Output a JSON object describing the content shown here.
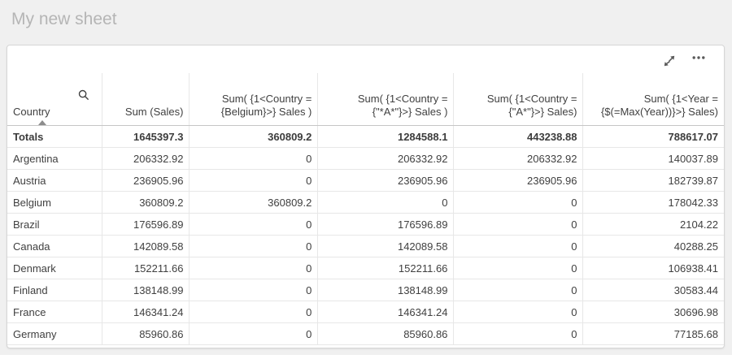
{
  "sheet": {
    "title": "My new sheet"
  },
  "toolbar": {
    "icons": [
      {
        "id": "fullscreen-icon",
        "meaning": "expand to full screen"
      },
      {
        "id": "more-menu-icon",
        "meaning": "more options menu"
      }
    ]
  },
  "table": {
    "columns": [
      {
        "id": "country",
        "label": "Country",
        "type": "dimension",
        "sorted": "ascending",
        "has_search_icon": true
      },
      {
        "id": "sum-sales",
        "label": "Sum (Sales)",
        "type": "measure"
      },
      {
        "id": "sum-belgium-sales",
        "label": "Sum( {1<Country = {Belgium}>} Sales )",
        "type": "measure"
      },
      {
        "id": "sum-star-a-star-sales",
        "label": "Sum( {1<Country = {\"*A*\"}>} Sales )",
        "type": "measure"
      },
      {
        "id": "sum-a-star-sales",
        "label": "Sum( {1<Country = {\"A*\"}>} Sales)",
        "type": "measure"
      },
      {
        "id": "sum-max-year-sales",
        "label": "Sum( {1<Year = {$(=Max(Year))}>} Sales)",
        "type": "measure"
      }
    ],
    "totals": {
      "label": "Totals",
      "values": [
        "1645397.3",
        "360809.2",
        "1284588.1",
        "443238.88",
        "788617.07"
      ]
    },
    "rows": [
      {
        "country": "Argentina",
        "values": [
          "206332.92",
          "0",
          "206332.92",
          "206332.92",
          "140037.89"
        ]
      },
      {
        "country": "Austria",
        "values": [
          "236905.96",
          "0",
          "236905.96",
          "236905.96",
          "182739.87"
        ]
      },
      {
        "country": "Belgium",
        "values": [
          "360809.2",
          "360809.2",
          "0",
          "0",
          "178042.33"
        ]
      },
      {
        "country": "Brazil",
        "values": [
          "176596.89",
          "0",
          "176596.89",
          "0",
          "2104.22"
        ]
      },
      {
        "country": "Canada",
        "values": [
          "142089.58",
          "0",
          "142089.58",
          "0",
          "40288.25"
        ]
      },
      {
        "country": "Denmark",
        "values": [
          "152211.66",
          "0",
          "152211.66",
          "0",
          "106938.41"
        ]
      },
      {
        "country": "Finland",
        "values": [
          "138148.99",
          "0",
          "138148.99",
          "0",
          "30583.44"
        ]
      },
      {
        "country": "France",
        "values": [
          "146341.24",
          "0",
          "146341.24",
          "0",
          "30696.98"
        ]
      },
      {
        "country": "Germany",
        "values": [
          "85960.86",
          "0",
          "85960.86",
          "0",
          "77185.68"
        ]
      }
    ]
  },
  "colors": {
    "page_background": "#f0f0f0",
    "card_background": "#ffffff",
    "title_text": "#b5b5b5",
    "cell_text": "#404040",
    "border_light": "#e7e7e7",
    "border_header": "#c6c6c6",
    "icon": "#595959",
    "sort_indicator": "#8c8c8c"
  }
}
